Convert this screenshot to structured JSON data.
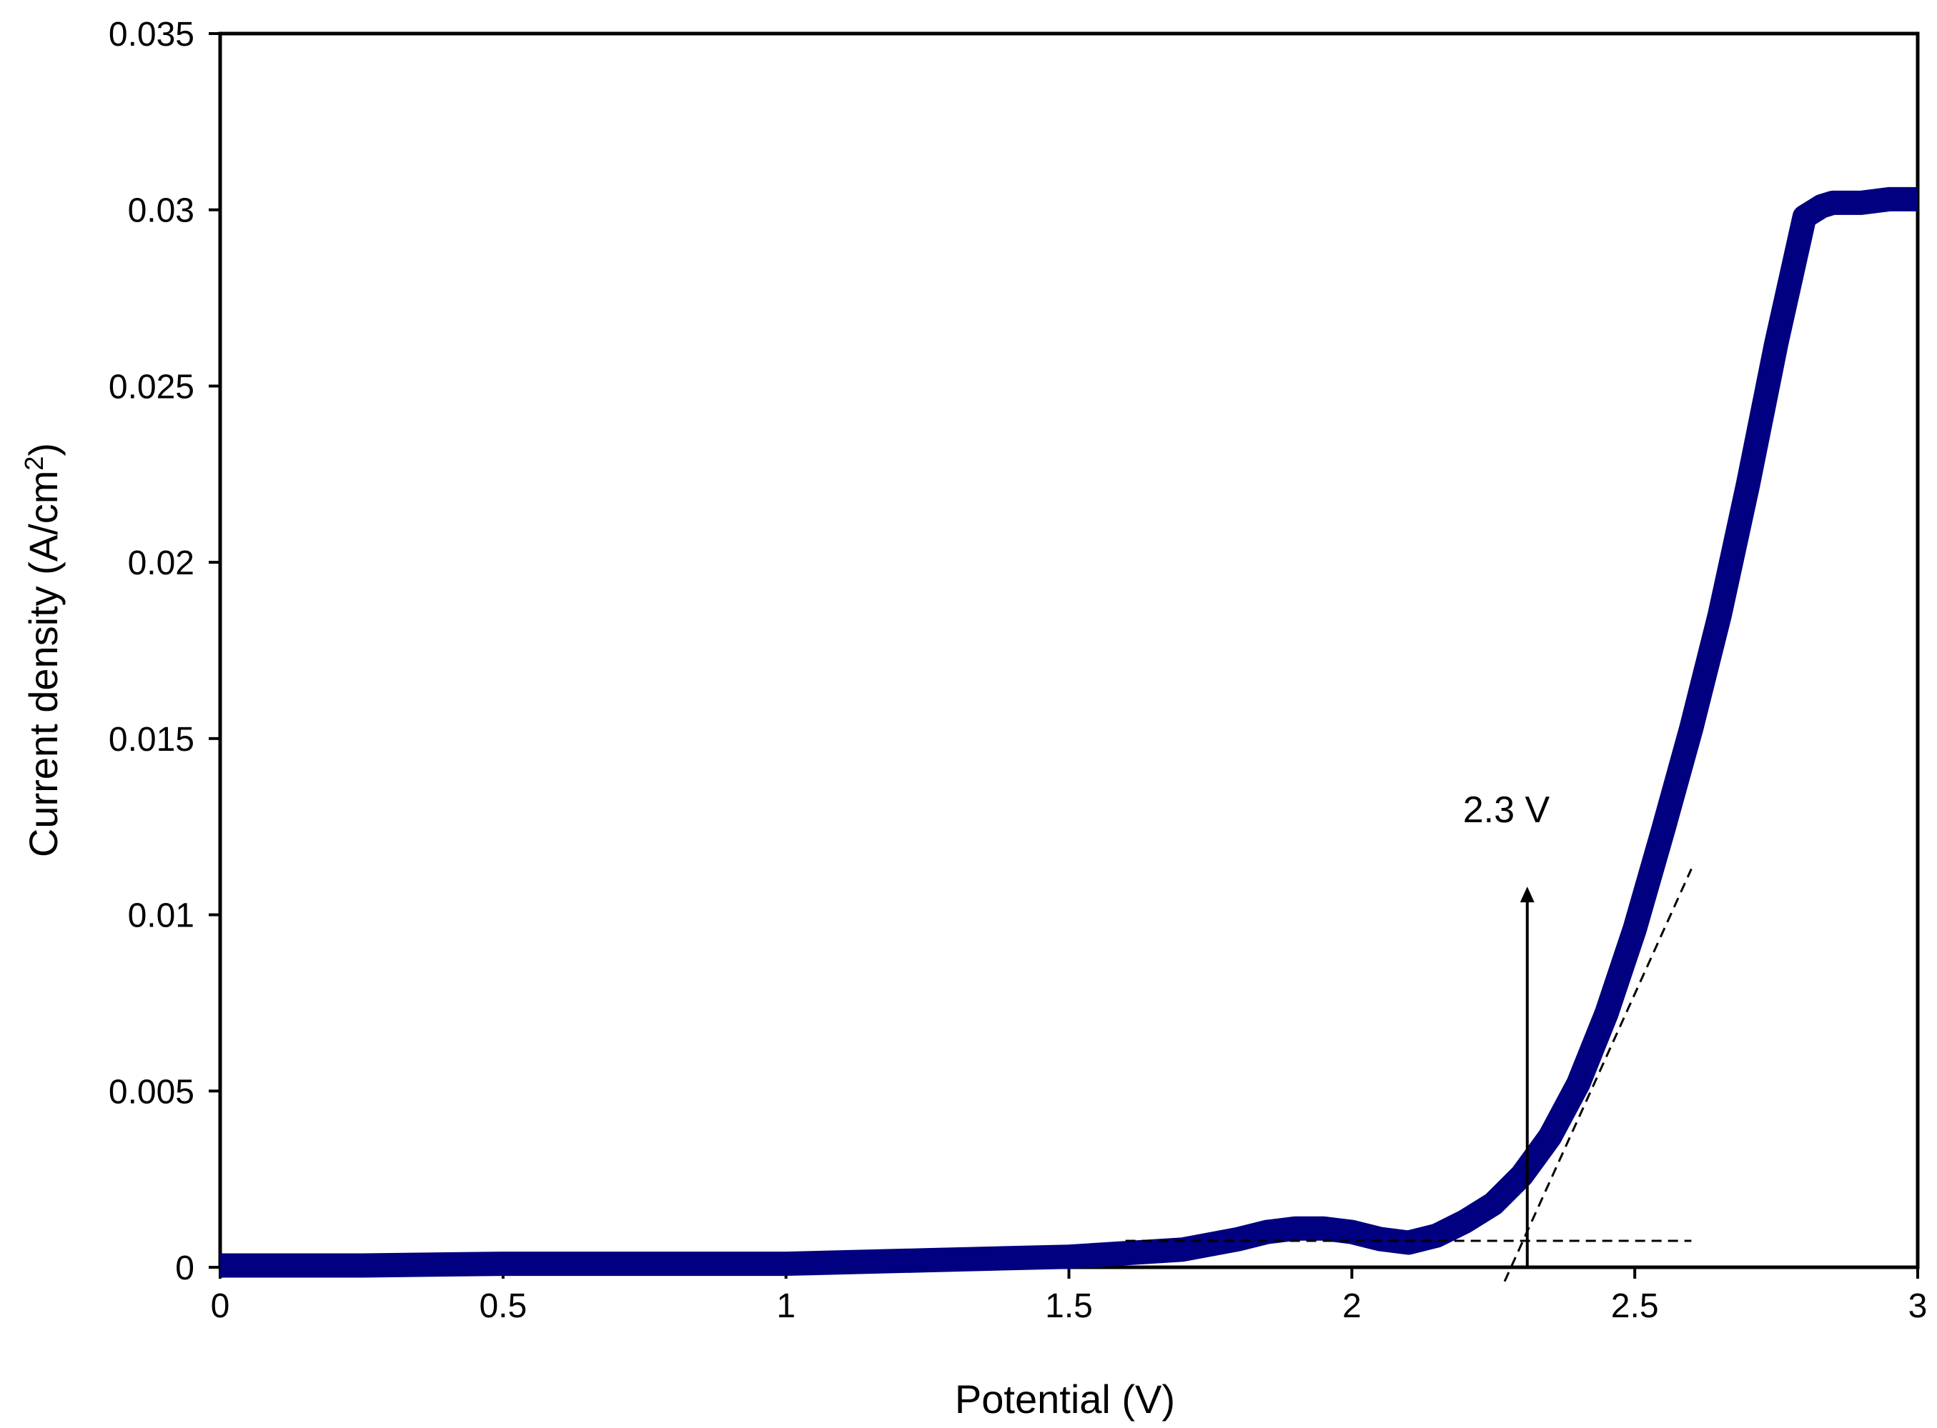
{
  "chart_data": {
    "type": "line",
    "title": "",
    "xlabel": "Potential (V)",
    "ylabel_main": "Current density (A/cm",
    "ylabel_sup": "2",
    "ylabel_close": ")",
    "xlim": [
      0,
      3
    ],
    "ylim": [
      0,
      0.035
    ],
    "x_ticks": [
      "0",
      "0.5",
      "1",
      "1.5",
      "2",
      "2.5",
      "3"
    ],
    "y_ticks": [
      "0",
      "0.005",
      "0.01",
      "0.015",
      "0.02",
      "0.025",
      "0.03",
      "0.035"
    ],
    "grid": false,
    "legend": "none",
    "series": [
      {
        "color": "#000080",
        "x": [
          0,
          0.25,
          0.5,
          0.75,
          1.0,
          1.25,
          1.5,
          1.6,
          1.7,
          1.8,
          1.85,
          1.9,
          1.95,
          2.0,
          2.05,
          2.1,
          2.15,
          2.2,
          2.25,
          2.3,
          2.35,
          2.4,
          2.45,
          2.5,
          2.55,
          2.6,
          2.65,
          2.7,
          2.75,
          2.8,
          2.83,
          2.85,
          2.9,
          2.95,
          3.0
        ],
        "y": [
          5e-05,
          5e-05,
          0.0001,
          0.0001,
          0.0001,
          0.0002,
          0.0003,
          0.0004,
          0.0005,
          0.0008,
          0.001,
          0.0011,
          0.0011,
          0.001,
          0.0008,
          0.0007,
          0.0009,
          0.0013,
          0.0018,
          0.0026,
          0.0037,
          0.0052,
          0.0072,
          0.0096,
          0.0124,
          0.0153,
          0.0185,
          0.0222,
          0.0262,
          0.0298,
          0.0301,
          0.0302,
          0.0302,
          0.0303,
          0.0303
        ]
      }
    ],
    "annotation": {
      "label": "2.3 V",
      "arrow_x": 2.31,
      "arrow_y_from": 0,
      "arrow_y_to": 0.0108,
      "baseline_y": 0.00075,
      "baseline_x": [
        1.6,
        2.6
      ],
      "tangent": {
        "x1": 2.27,
        "y1": -0.0004,
        "x2": 2.6,
        "y2": 0.0113
      }
    }
  }
}
